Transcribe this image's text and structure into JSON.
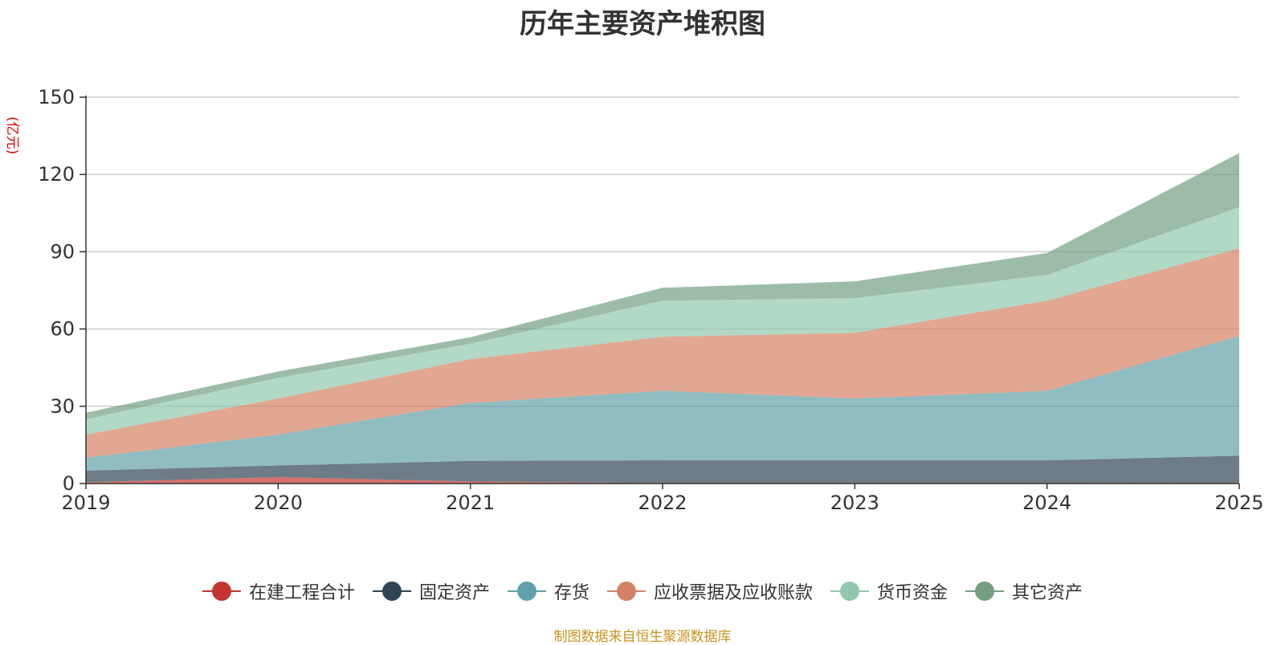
{
  "chart_data": {
    "type": "area",
    "stacked": true,
    "title": "历年主要资产堆积图",
    "unit_label": "(亿元)",
    "categories": [
      "2019",
      "2020",
      "2021",
      "2022",
      "2023",
      "2024",
      "2025"
    ],
    "ylim": [
      0,
      150
    ],
    "yticks": [
      0,
      30,
      60,
      90,
      120,
      150
    ],
    "grid": true,
    "legend_position": "bottom",
    "series": [
      {
        "name": "在建工程合计",
        "color": "#c23531",
        "values": [
          0.5,
          2.5,
          0.8,
          0.2,
          0.2,
          0.2,
          0.3
        ]
      },
      {
        "name": "固定资产",
        "color": "#2f4554",
        "values": [
          4.5,
          4.5,
          8.0,
          8.8,
          8.8,
          8.8,
          10.5
        ]
      },
      {
        "name": "存货",
        "color": "#61a0a8",
        "values": [
          5.0,
          12.0,
          22.5,
          27.0,
          24.0,
          27.0,
          46.5
        ]
      },
      {
        "name": "应收票据及应收账款",
        "color": "#d48265",
        "values": [
          9.0,
          14.0,
          17.0,
          21.0,
          25.5,
          35.0,
          34.0
        ]
      },
      {
        "name": "货币资金",
        "color": "#91c7ae",
        "values": [
          6.0,
          8.0,
          6.0,
          14.0,
          13.5,
          10.0,
          16.0
        ]
      },
      {
        "name": "其它资产",
        "color": "#749f83",
        "values": [
          2.5,
          2.5,
          2.5,
          5.0,
          6.5,
          8.5,
          21.0
        ]
      }
    ]
  },
  "footer": {
    "source_note": "制图数据来自恒生聚源数据库"
  }
}
